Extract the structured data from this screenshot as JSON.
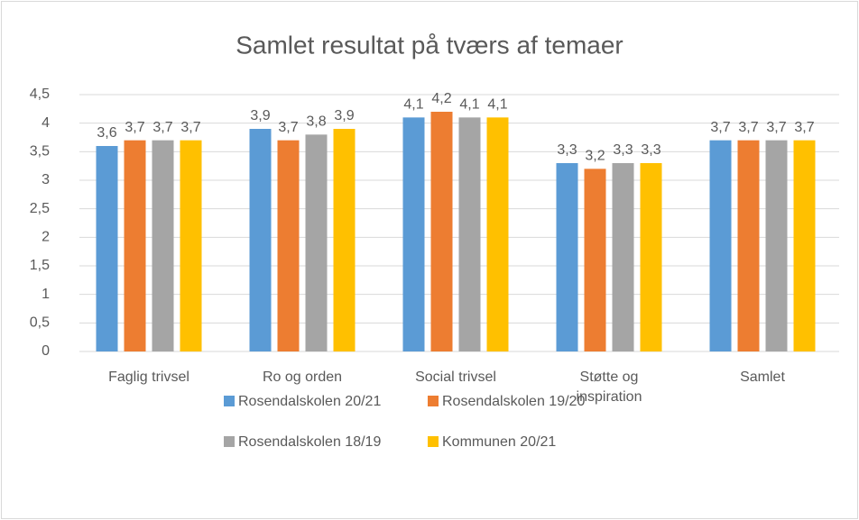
{
  "chart_data": {
    "type": "bar",
    "title": "Samlet resultat på tværs af temaer",
    "categories": [
      "Faglig trivsel",
      "Ro og orden",
      "Social trivsel",
      "Støtte og inspiration",
      "Samlet"
    ],
    "series": [
      {
        "name": "Rosendalskolen 20/21",
        "color": "#5b9bd5",
        "values": [
          3.6,
          3.9,
          4.1,
          3.3,
          3.7
        ],
        "value_labels": [
          "3,6",
          "3,9",
          "4,1",
          "3,3",
          "3,7"
        ]
      },
      {
        "name": "Rosendalskolen 19/20",
        "color": "#ed7d31",
        "values": [
          3.7,
          3.7,
          4.2,
          3.2,
          3.7
        ],
        "value_labels": [
          "3,7",
          "3,7",
          "4,2",
          "3,2",
          "3,7"
        ]
      },
      {
        "name": "Rosendalskolen 18/19",
        "color": "#a5a5a5",
        "values": [
          3.7,
          3.8,
          4.1,
          3.3,
          3.7
        ],
        "value_labels": [
          "3,7",
          "3,8",
          "4,1",
          "3,3",
          "3,7"
        ]
      },
      {
        "name": "Kommunen 20/21",
        "color": "#ffc000",
        "values": [
          3.7,
          3.9,
          4.1,
          3.3,
          3.7
        ],
        "value_labels": [
          "3,7",
          "3,9",
          "4,1",
          "3,3",
          "3,7"
        ]
      }
    ],
    "ylim": [
      0,
      4.5
    ],
    "yticks": [
      0,
      {
        "value": 0.5,
        "label": "0,5"
      },
      1,
      {
        "value": 1.5,
        "label": "1,5"
      },
      2,
      {
        "value": 2.5,
        "label": "2,5"
      },
      3,
      {
        "value": 3.5,
        "label": "3,5"
      },
      4,
      {
        "value": 4.5,
        "label": "4,5"
      }
    ],
    "grid": true,
    "legend": "bottom"
  }
}
